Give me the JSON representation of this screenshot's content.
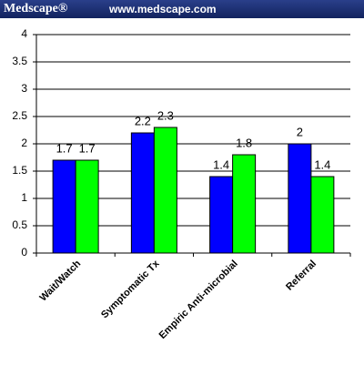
{
  "header": {
    "brand": "Medscape®",
    "url": "www.medscape.com"
  },
  "chart_data": {
    "type": "bar",
    "categories": [
      "Wait/Watch",
      "Symptomatic Tx",
      "Empiric Anti-microbial",
      "Referral"
    ],
    "series": [
      {
        "color": "#0000ff",
        "values": [
          1.7,
          2.2,
          1.4,
          2
        ]
      },
      {
        "color": "#00ff00",
        "values": [
          1.7,
          2.3,
          1.8,
          1.4
        ]
      }
    ],
    "ylim": [
      0,
      4
    ],
    "yticks": [
      0,
      0.5,
      1,
      1.5,
      2,
      2.5,
      3,
      3.5,
      4
    ],
    "grid": true
  }
}
